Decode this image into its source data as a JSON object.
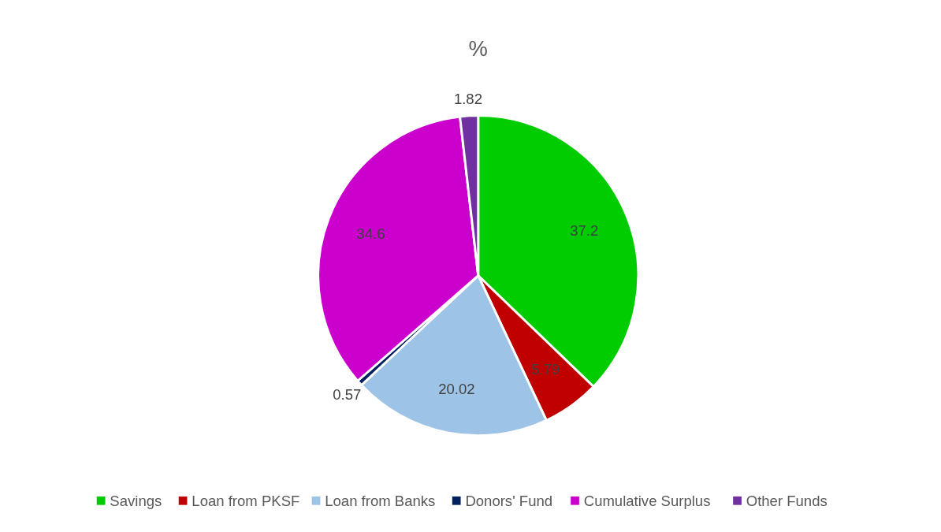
{
  "chart_data": {
    "type": "pie",
    "title": "%",
    "categories": [
      "Savings",
      "Loan from PKSF",
      "Loan from Banks",
      "Donors' Fund",
      "Cumulative Surplus",
      "Other Funds"
    ],
    "values": [
      37.2,
      5.79,
      20.02,
      0.57,
      34.6,
      1.82
    ],
    "colors": [
      "#00cc00",
      "#c00000",
      "#9dc3e6",
      "#002060",
      "#cc00cc",
      "#7030a0"
    ],
    "data_labels": true,
    "legend": "bottom"
  }
}
